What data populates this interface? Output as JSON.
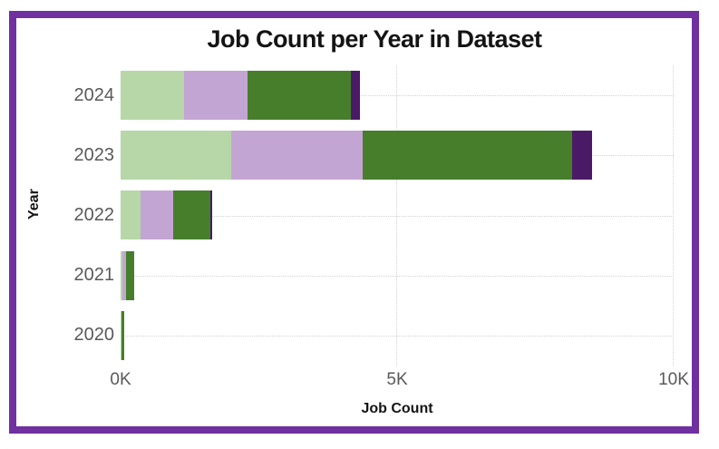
{
  "chart_data": {
    "type": "bar",
    "orientation": "horizontal",
    "stacked": true,
    "title": "Job Count per Year in Dataset",
    "xlabel": "Job Count",
    "ylabel": "Year",
    "xlim": [
      0,
      10000
    ],
    "x_ticks": [
      {
        "label": "0K",
        "value": 0
      },
      {
        "label": "5K",
        "value": 5000
      },
      {
        "label": "10K",
        "value": 10000
      }
    ],
    "categories": [
      "2024",
      "2023",
      "2022",
      "2021",
      "2020"
    ],
    "series": [
      {
        "name": "light-green-segment",
        "color": "#b7d7a8",
        "values": [
          1150,
          2000,
          360,
          30,
          10
        ]
      },
      {
        "name": "light-purple-segment",
        "color": "#c3a5d3",
        "values": [
          1150,
          2380,
          590,
          70,
          10
        ]
      },
      {
        "name": "dark-green-segment",
        "color": "#467e2c",
        "values": [
          1870,
          3780,
          670,
          150,
          50
        ]
      },
      {
        "name": "dark-purple-segment",
        "color": "#4a1a67",
        "values": [
          160,
          360,
          30,
          0,
          0
        ]
      }
    ],
    "legend": "none",
    "grid": "dotted"
  },
  "frame": {
    "border_color": "#7030a0",
    "background": "#ffffff"
  },
  "text_colors": {
    "title": "#141414",
    "tick_labels": "#595959"
  }
}
